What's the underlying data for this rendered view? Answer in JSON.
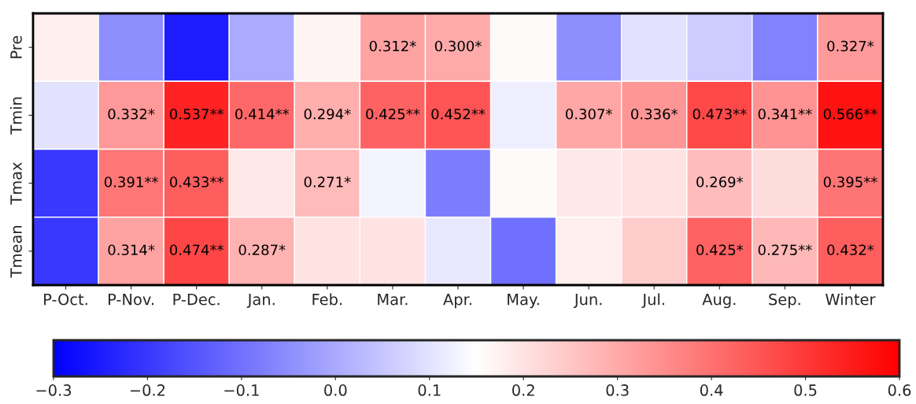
{
  "chart_data": {
    "type": "heatmap",
    "categories": [
      "P-Oct.",
      "P-Nov.",
      "P-Dec.",
      "Jan.",
      "Feb.",
      "Mar.",
      "Apr.",
      "May.",
      "Jun.",
      "Jul.",
      "Aug.",
      "Sep.",
      "Winter"
    ],
    "y_categories": [
      "Pre",
      "Tmin",
      "Tmax",
      "Tmean"
    ],
    "cells": [
      [
        0.18,
        -0.05,
        -0.25,
        0.0,
        0.17,
        0.312,
        0.3,
        0.16,
        -0.05,
        0.1,
        0.06,
        -0.07,
        0.327
      ],
      [
        0.1,
        0.332,
        0.537,
        0.414,
        0.294,
        0.425,
        0.452,
        0.12,
        0.307,
        0.336,
        0.473,
        0.341,
        0.566
      ],
      [
        -0.2,
        0.391,
        0.433,
        0.19,
        0.271,
        0.13,
        -0.08,
        0.16,
        0.19,
        0.2,
        0.269,
        0.21,
        0.395
      ],
      [
        -0.2,
        0.314,
        0.474,
        0.287,
        0.2,
        0.2,
        0.11,
        -0.1,
        0.18,
        0.24,
        0.425,
        0.275,
        0.432
      ]
    ],
    "cell_labels": [
      [
        null,
        null,
        null,
        null,
        null,
        "0.312*",
        "0.300*",
        null,
        null,
        null,
        null,
        null,
        "0.327*"
      ],
      [
        null,
        "0.332*",
        "0.537**",
        "0.414**",
        "0.294*",
        "0.425**",
        "0.452**",
        null,
        "0.307*",
        "0.336*",
        "0.473**",
        "0.341**",
        "0.566**"
      ],
      [
        null,
        "0.391**",
        "0.433**",
        null,
        "0.271*",
        null,
        null,
        null,
        null,
        null,
        "0.269*",
        null,
        "0.395**"
      ],
      [
        null,
        "0.314*",
        "0.474**",
        "0.287*",
        null,
        null,
        null,
        null,
        null,
        null,
        "0.425*",
        "0.275**",
        "0.432*"
      ]
    ],
    "clim": [
      -0.3,
      0.6
    ],
    "cticks": [
      {
        "value": -0.3,
        "label": "−0.3"
      },
      {
        "value": -0.2,
        "label": "−0.2"
      },
      {
        "value": -0.1,
        "label": "−0.1"
      },
      {
        "value": 0.0,
        "label": "0.0"
      },
      0.1,
      0.2,
      0.3,
      0.4,
      0.5,
      0.6
    ]
  }
}
